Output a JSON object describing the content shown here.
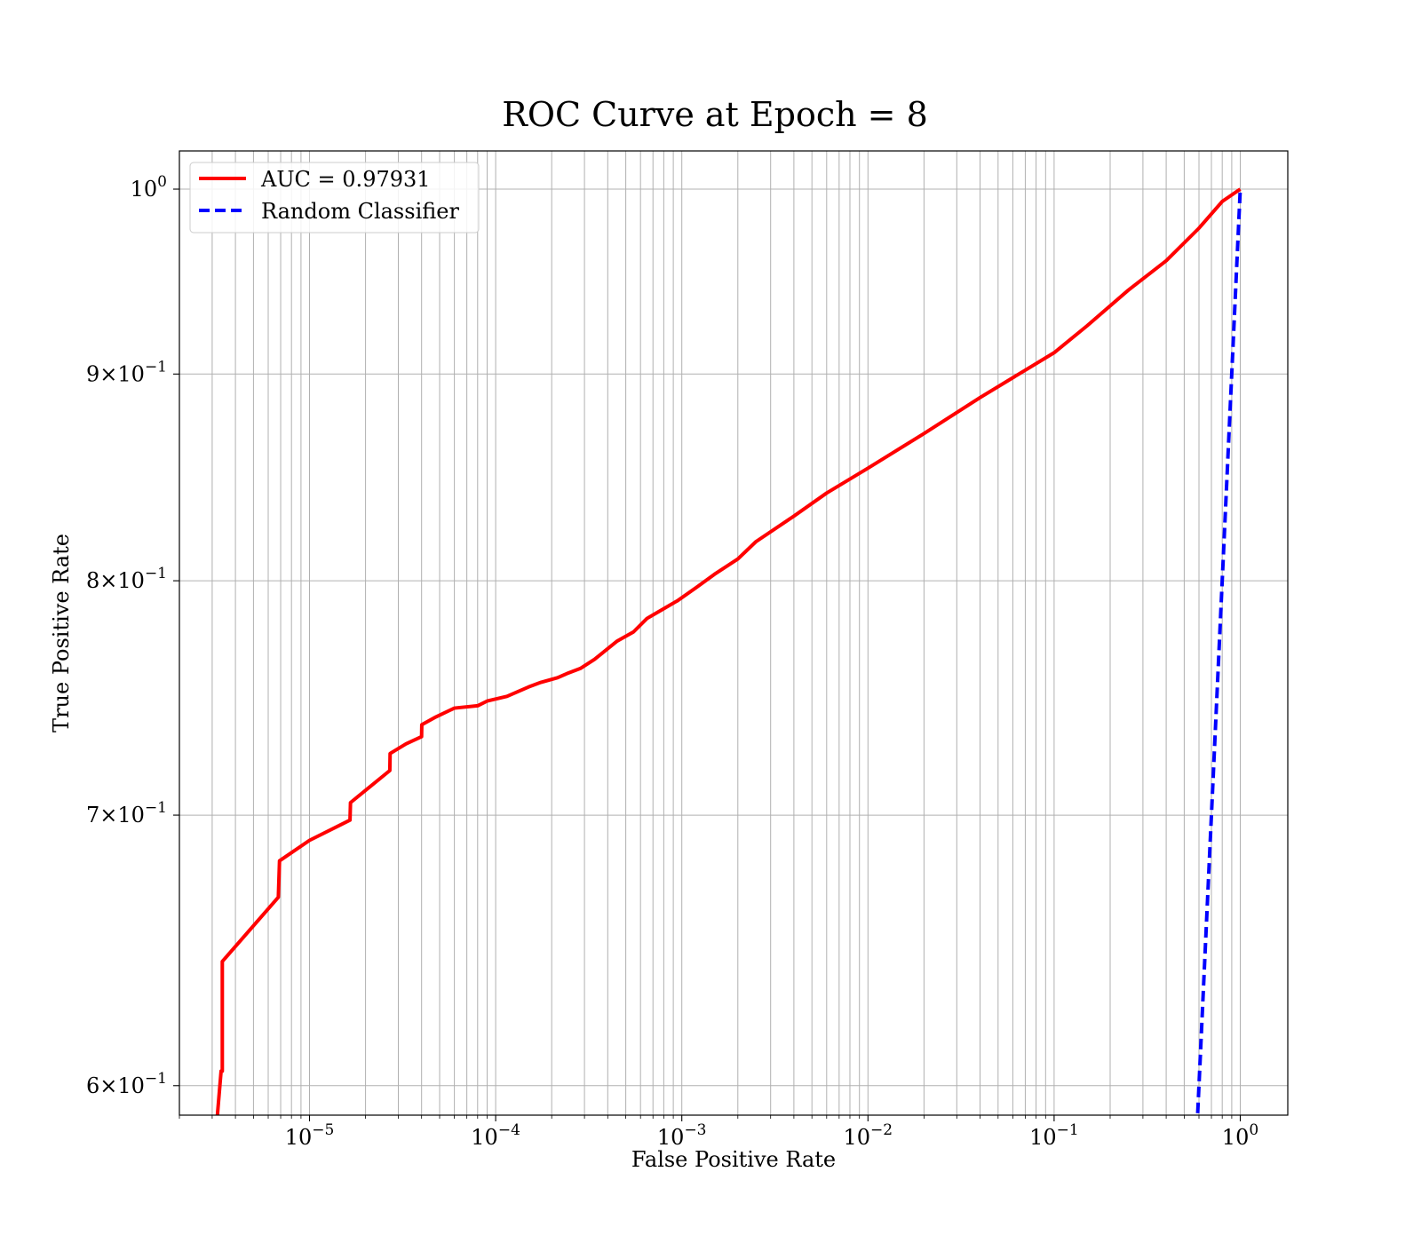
{
  "chart_data": {
    "type": "line",
    "title": "ROC Curve at Epoch = 8",
    "xlabel": "False Positive Rate",
    "ylabel": "True Positive Rate",
    "xscale": "log",
    "yscale": "log",
    "xlim": [
      2e-06,
      1.8
    ],
    "ylim": [
      0.59,
      1.022
    ],
    "grid": "both (major and minor)",
    "legend_position": "top-left",
    "x_tick_labels": [
      {
        "base": "10",
        "exp": "−5",
        "value": 1e-05
      },
      {
        "base": "10",
        "exp": "−4",
        "value": 0.0001
      },
      {
        "base": "10",
        "exp": "−3",
        "value": 0.001
      },
      {
        "base": "10",
        "exp": "−2",
        "value": 0.01
      },
      {
        "base": "10",
        "exp": "−1",
        "value": 0.1
      },
      {
        "base": "10",
        "exp": "0",
        "value": 1
      }
    ],
    "y_tick_labels": [
      {
        "mant": "",
        "base": "10",
        "exp": "0",
        "value": 1.0
      },
      {
        "mant": "9×",
        "base": "10",
        "exp": "−1",
        "value": 0.9
      },
      {
        "mant": "8×",
        "base": "10",
        "exp": "−1",
        "value": 0.8
      },
      {
        "mant": "7×",
        "base": "10",
        "exp": "−1",
        "value": 0.7
      },
      {
        "mant": "6×",
        "base": "10",
        "exp": "−1",
        "value": 0.6
      }
    ],
    "series": [
      {
        "name": "AUC = 0.97931",
        "color": "#ff0000",
        "style": "solid",
        "x": [
          3.2e-06,
          3.35e-06,
          3.4e-06,
          3.4e-06,
          6.8e-06,
          6.9e-06,
          1e-05,
          1.65e-05,
          1.66e-05,
          2.7e-05,
          2.71e-05,
          3.3e-05,
          4e-05,
          4.01e-05,
          4.7e-05,
          6e-05,
          8e-05,
          9e-05,
          0.000115,
          0.00015,
          0.000175,
          0.000215,
          0.000245,
          0.000285,
          0.00034,
          0.00045,
          0.00055,
          0.00065,
          0.00075,
          0.00095,
          0.0012,
          0.0015,
          0.002,
          0.0025,
          0.004,
          0.006,
          0.01,
          0.02,
          0.04,
          0.07,
          0.1,
          0.15,
          0.25,
          0.4,
          0.6,
          0.8,
          1.0
        ],
        "y": [
          0.59,
          0.605,
          0.605,
          0.644,
          0.668,
          0.682,
          0.69,
          0.698,
          0.705,
          0.718,
          0.725,
          0.729,
          0.732,
          0.737,
          0.74,
          0.744,
          0.745,
          0.747,
          0.749,
          0.753,
          0.755,
          0.757,
          0.759,
          0.761,
          0.765,
          0.773,
          0.777,
          0.783,
          0.786,
          0.791,
          0.797,
          0.803,
          0.81,
          0.818,
          0.83,
          0.841,
          0.853,
          0.87,
          0.888,
          0.902,
          0.911,
          0.925,
          0.944,
          0.96,
          0.978,
          0.993,
          1.0
        ]
      },
      {
        "name": "Random Classifier",
        "color": "#0000ff",
        "style": "dashed",
        "x": [
          0.58,
          0.7,
          0.8,
          0.9,
          1.0
        ],
        "y": [
          0.58,
          0.7,
          0.8,
          0.9,
          1.0
        ]
      }
    ]
  }
}
